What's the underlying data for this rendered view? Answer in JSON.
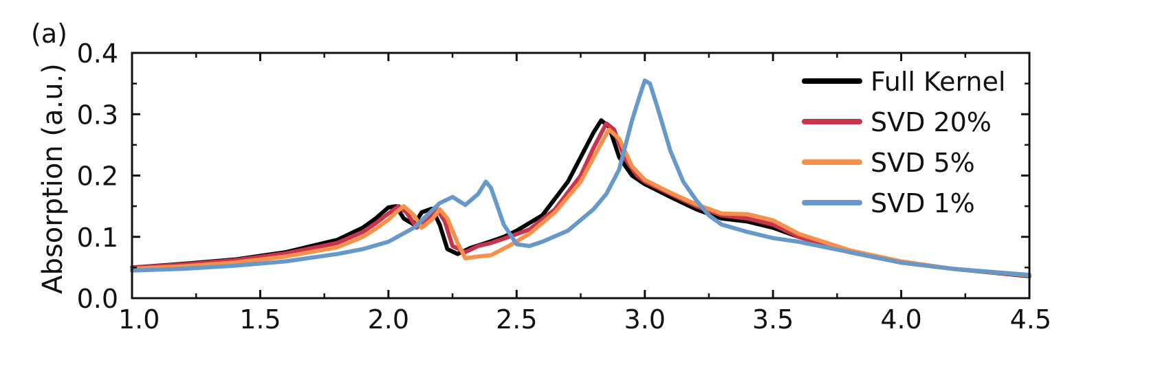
{
  "chart_data": {
    "type": "line",
    "panel_label": "(a)",
    "title": "",
    "xlabel": "",
    "ylabel": "Absorption (a.u.)",
    "xlim": [
      1.0,
      4.5
    ],
    "ylim": [
      0.0,
      0.4
    ],
    "x_ticks": [
      "1.0",
      "1.5",
      "2.0",
      "2.5",
      "3.0",
      "3.5",
      "4.0",
      "4.5"
    ],
    "y_ticks": [
      "0.0",
      "0.1",
      "0.2",
      "0.3",
      "0.4"
    ],
    "grid": false,
    "legend_position": "top-right",
    "series": [
      {
        "name": "Full Kernel",
        "color": "#000000",
        "x": [
          1.0,
          1.2,
          1.4,
          1.6,
          1.8,
          1.9,
          1.95,
          2.0,
          2.03,
          2.06,
          2.1,
          2.13,
          2.17,
          2.2,
          2.23,
          2.27,
          2.32,
          2.38,
          2.45,
          2.5,
          2.6,
          2.7,
          2.75,
          2.8,
          2.83,
          2.86,
          2.9,
          2.95,
          3.0,
          3.1,
          3.2,
          3.3,
          3.4,
          3.5,
          3.6,
          3.8,
          4.0,
          4.2,
          4.5
        ],
        "y": [
          0.05,
          0.056,
          0.063,
          0.075,
          0.095,
          0.115,
          0.13,
          0.148,
          0.15,
          0.13,
          0.12,
          0.14,
          0.146,
          0.12,
          0.08,
          0.072,
          0.082,
          0.09,
          0.1,
          0.11,
          0.135,
          0.19,
          0.23,
          0.27,
          0.29,
          0.28,
          0.23,
          0.2,
          0.186,
          0.165,
          0.145,
          0.13,
          0.125,
          0.115,
          0.1,
          0.075,
          0.058,
          0.048,
          0.036
        ]
      },
      {
        "name": "SVD 20%",
        "color": "#c8344e",
        "x": [
          1.0,
          1.2,
          1.4,
          1.6,
          1.8,
          1.9,
          1.95,
          2.0,
          2.04,
          2.07,
          2.11,
          2.15,
          2.19,
          2.22,
          2.25,
          2.3,
          2.35,
          2.4,
          2.47,
          2.55,
          2.65,
          2.75,
          2.8,
          2.85,
          2.88,
          2.92,
          2.97,
          3.0,
          3.1,
          3.2,
          3.3,
          3.4,
          3.5,
          3.6,
          3.8,
          4.0,
          4.2,
          4.5
        ],
        "y": [
          0.05,
          0.055,
          0.062,
          0.073,
          0.09,
          0.108,
          0.122,
          0.138,
          0.15,
          0.14,
          0.115,
          0.13,
          0.145,
          0.125,
          0.085,
          0.075,
          0.085,
          0.09,
          0.1,
          0.112,
          0.145,
          0.2,
          0.245,
          0.285,
          0.275,
          0.23,
          0.2,
          0.19,
          0.17,
          0.15,
          0.135,
          0.13,
          0.12,
          0.1,
          0.075,
          0.058,
          0.048,
          0.037
        ]
      },
      {
        "name": "SVD 5%",
        "color": "#f5914a",
        "x": [
          1.0,
          1.2,
          1.4,
          1.6,
          1.8,
          1.9,
          1.95,
          2.0,
          2.03,
          2.06,
          2.1,
          2.13,
          2.17,
          2.2,
          2.23,
          2.27,
          2.3,
          2.35,
          2.4,
          2.47,
          2.55,
          2.65,
          2.75,
          2.82,
          2.86,
          2.9,
          2.95,
          3.0,
          3.1,
          3.2,
          3.3,
          3.4,
          3.5,
          3.6,
          3.8,
          4.0,
          4.2,
          4.5
        ],
        "y": [
          0.048,
          0.052,
          0.058,
          0.068,
          0.083,
          0.1,
          0.113,
          0.128,
          0.14,
          0.15,
          0.135,
          0.115,
          0.128,
          0.145,
          0.13,
          0.09,
          0.065,
          0.068,
          0.07,
          0.085,
          0.105,
          0.14,
          0.19,
          0.245,
          0.275,
          0.26,
          0.215,
          0.193,
          0.172,
          0.153,
          0.138,
          0.137,
          0.127,
          0.105,
          0.078,
          0.06,
          0.048,
          0.037
        ]
      },
      {
        "name": "SVD 1%",
        "color": "#6699c9",
        "x": [
          1.0,
          1.2,
          1.4,
          1.6,
          1.8,
          1.9,
          2.0,
          2.1,
          2.2,
          2.25,
          2.3,
          2.35,
          2.38,
          2.4,
          2.45,
          2.5,
          2.55,
          2.6,
          2.7,
          2.8,
          2.85,
          2.9,
          2.95,
          2.98,
          3.0,
          3.02,
          3.05,
          3.1,
          3.15,
          3.2,
          3.25,
          3.3,
          3.4,
          3.5,
          3.6,
          3.8,
          4.0,
          4.2,
          4.5
        ],
        "y": [
          0.045,
          0.048,
          0.053,
          0.06,
          0.072,
          0.08,
          0.092,
          0.115,
          0.155,
          0.165,
          0.152,
          0.17,
          0.19,
          0.18,
          0.12,
          0.088,
          0.085,
          0.092,
          0.11,
          0.145,
          0.17,
          0.21,
          0.29,
          0.33,
          0.355,
          0.35,
          0.31,
          0.24,
          0.19,
          0.16,
          0.135,
          0.12,
          0.108,
          0.098,
          0.092,
          0.075,
          0.058,
          0.048,
          0.038
        ]
      }
    ]
  }
}
